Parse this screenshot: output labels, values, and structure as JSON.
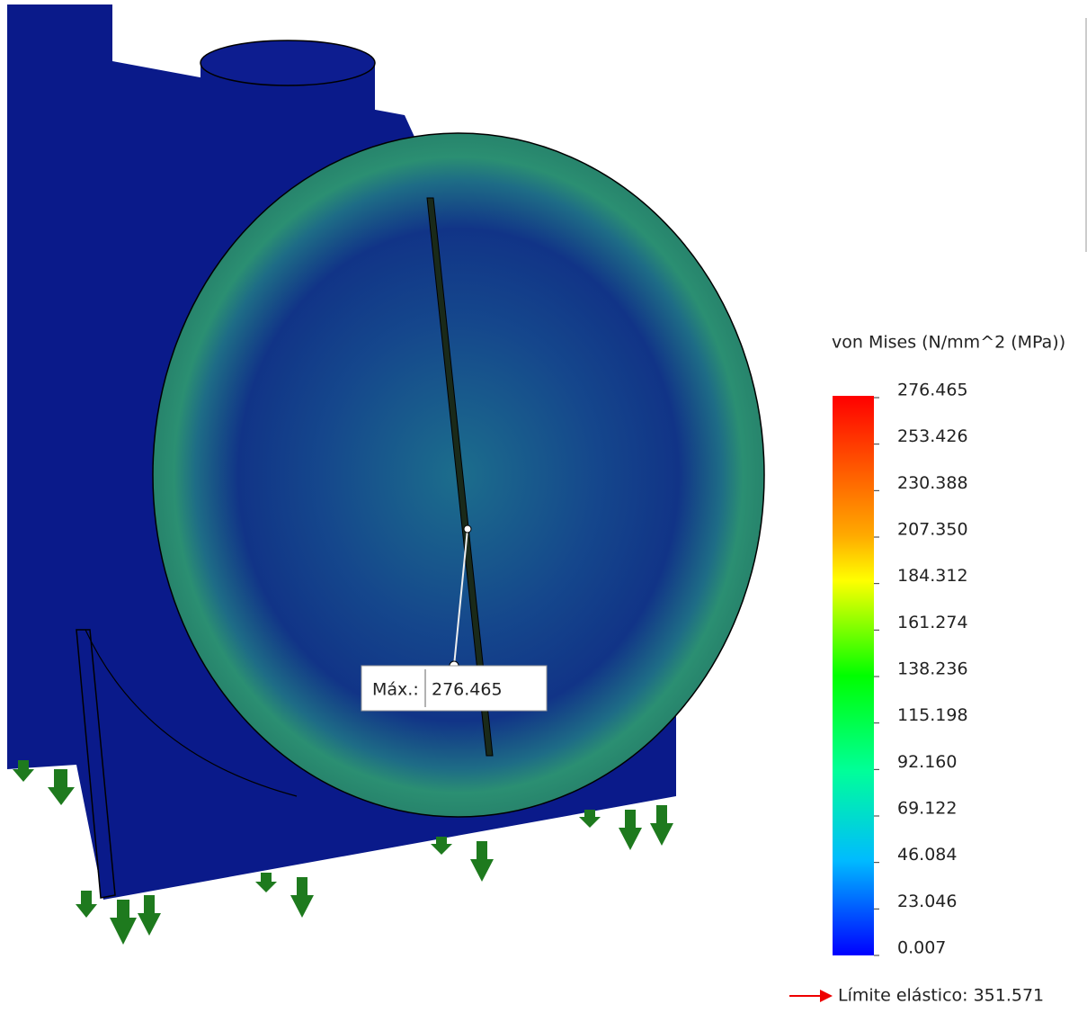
{
  "legend": {
    "title": "von Mises (N/mm^2 (MPa))",
    "labels": [
      "276.465",
      "253.426",
      "230.388",
      "207.350",
      "184.312",
      "161.274",
      "138.236",
      "115.198",
      "92.160",
      "69.122",
      "46.084",
      "23.046",
      "0.007"
    ]
  },
  "probe": {
    "label": "Máx.:",
    "value": "276.465"
  },
  "yield_limit": "Límite elástico: 351.571"
}
